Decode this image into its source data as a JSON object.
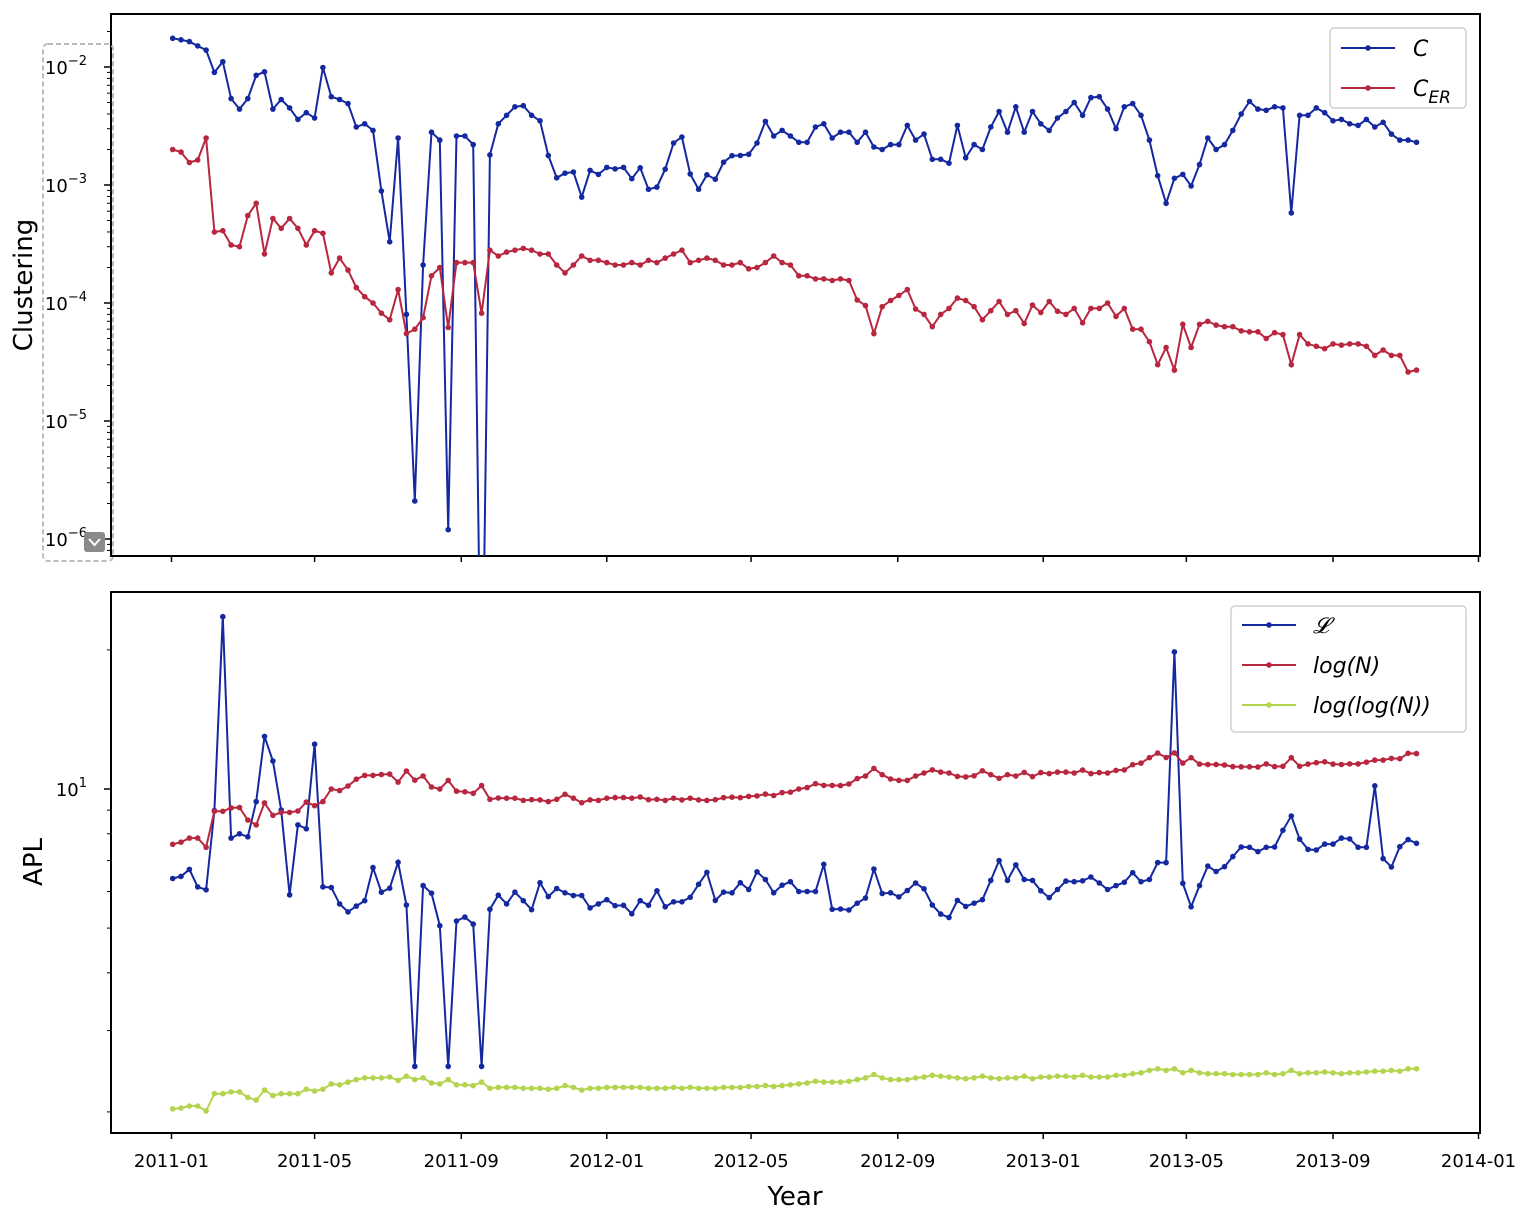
{
  "chart_data": [
    {
      "type": "line",
      "panel": "top",
      "ylabel": "Clustering",
      "xlabel": "",
      "yscale": "log",
      "ylim": [
        7.2e-07,
        0.028
      ],
      "yticks": [
        {
          "base": "10",
          "exp": "−6",
          "value": 1e-06
        },
        {
          "base": "10",
          "exp": "−5",
          "value": 1e-05
        },
        {
          "base": "10",
          "exp": "−4",
          "value": 0.0001
        },
        {
          "base": "10",
          "exp": "−3",
          "value": 0.001
        },
        {
          "base": "10",
          "exp": "−2",
          "value": 0.01
        }
      ],
      "legend_position": "upper-right",
      "x": {
        "start": "2011-01-02",
        "step_days": 7,
        "count": 150
      },
      "series": [
        {
          "name": "C",
          "sub": "",
          "color": "#1428a0",
          "values": [
            0.0175,
            0.017,
            0.0164,
            0.0151,
            0.0139,
            0.009,
            0.0111,
            0.0054,
            0.0044,
            0.0054,
            0.0085,
            0.0091,
            0.0044,
            0.0053,
            0.0045,
            0.0036,
            0.0041,
            0.0037,
            0.0099,
            0.0056,
            0.0053,
            0.0049,
            0.0031,
            0.0033,
            0.0029,
            0.00089,
            0.00033,
            0.0025,
            8e-05,
            2.1e-06,
            0.00021,
            0.0028,
            0.0024,
            1.2e-06,
            0.0026,
            0.0026,
            0.0022,
            0,
            0.0018,
            0.0033,
            0.0039,
            0.0046,
            0.0047,
            0.0039,
            0.0035,
            0.00178,
            0.00115,
            0.00126,
            0.00129,
            0.00079,
            0.00133,
            0.00123,
            0.00141,
            0.00137,
            0.00141,
            0.00113,
            0.0014,
            0.00092,
            0.00096,
            0.00136,
            0.00227,
            0.00255,
            0.00124,
            0.00092,
            0.00122,
            0.00112,
            0.00156,
            0.00177,
            0.00178,
            0.00182,
            0.00227,
            0.00346,
            0.0026,
            0.0029,
            0.0026,
            0.0023,
            0.0023,
            0.0031,
            0.0033,
            0.0025,
            0.0028,
            0.0028,
            0.0023,
            0.0028,
            0.0021,
            0.002,
            0.0022,
            0.0022,
            0.0032,
            0.0024,
            0.0027,
            0.00165,
            0.00165,
            0.00153,
            0.0032,
            0.0017,
            0.0022,
            0.002,
            0.0031,
            0.0042,
            0.0028,
            0.0046,
            0.0028,
            0.0042,
            0.0033,
            0.0029,
            0.0037,
            0.0042,
            0.005,
            0.0039,
            0.0055,
            0.0056,
            0.0044,
            0.003,
            0.0046,
            0.0049,
            0.0039,
            0.0024,
            0.0012,
            0.0007,
            0.00114,
            0.00123,
            0.00098,
            0.00149,
            0.0025,
            0.002,
            0.0022,
            0.0029,
            0.004,
            0.0051,
            0.0044,
            0.0043,
            0.0046,
            0.0045,
            0.00058,
            0.0039,
            0.0039,
            0.0045,
            0.0041,
            0.0035,
            0.0036,
            0.0033,
            0.0032,
            0.0036,
            0.0031,
            0.0034,
            0.0027,
            0.0024,
            0.0024,
            0.0023
          ]
        },
        {
          "name": "C",
          "sub": "ER",
          "color": "#b8263f",
          "values": [
            0.002,
            0.0019,
            0.00155,
            0.00163,
            0.0025,
            0.0004,
            0.00041,
            0.00031,
            0.0003,
            0.00055,
            0.0007,
            0.00026,
            0.00052,
            0.00043,
            0.00052,
            0.00043,
            0.00031,
            0.00041,
            0.00039,
            0.00018,
            0.00024,
            0.00019,
            0.000135,
            0.000113,
            0.0001,
            8.2e-05,
            7.2e-05,
            0.00013,
            5.5e-05,
            6e-05,
            7.5e-05,
            0.00017,
            0.0002,
            6.2e-05,
            0.00022,
            0.00022,
            0.00022,
            8.2e-05,
            0.00028,
            0.00025,
            0.00027,
            0.00028,
            0.00029,
            0.00028,
            0.00026,
            0.00026,
            0.00021,
            0.00018,
            0.00021,
            0.00025,
            0.00023,
            0.00023,
            0.00022,
            0.00021,
            0.00021,
            0.00022,
            0.00021,
            0.00023,
            0.00022,
            0.00024,
            0.00026,
            0.00028,
            0.00022,
            0.00023,
            0.00024,
            0.00023,
            0.00021,
            0.00021,
            0.00022,
            0.000195,
            0.0002,
            0.00022,
            0.00025,
            0.00022,
            0.00021,
            0.00017,
            0.00017,
            0.00016,
            0.00016,
            0.000155,
            0.00016,
            0.000155,
            0.000106,
            9.5e-05,
            5.5e-05,
            9.3e-05,
            0.000105,
            0.000116,
            0.00013,
            8.9e-05,
            8e-05,
            6.3e-05,
            8e-05,
            9e-05,
            0.00011,
            0.000105,
            9.3e-05,
            7.2e-05,
            8.6e-05,
            0.000103,
            8e-05,
            8.6e-05,
            6.7e-05,
            9.6e-05,
            8.3e-05,
            0.000103,
            8.5e-05,
            8e-05,
            9e-05,
            6.8e-05,
            9e-05,
            9e-05,
            0.0001,
            7.7e-05,
            9e-05,
            6e-05,
            6e-05,
            4.7e-05,
            3e-05,
            4.2e-05,
            2.7e-05,
            6.6e-05,
            4.2e-05,
            6.6e-05,
            7e-05,
            6.5e-05,
            6.3e-05,
            6.3e-05,
            5.8e-05,
            5.7e-05,
            5.7e-05,
            5e-05,
            5.6e-05,
            5.4e-05,
            3e-05,
            5.4e-05,
            4.5e-05,
            4.3e-05,
            4.1e-05,
            4.5e-05,
            4.4e-05,
            4.5e-05,
            4.5e-05,
            4.3e-05,
            3.6e-05,
            4e-05,
            3.6e-05,
            3.6e-05,
            2.6e-05,
            2.7e-05
          ]
        }
      ]
    },
    {
      "type": "line",
      "panel": "bottom",
      "ylabel": "APL",
      "xlabel": "Year",
      "yscale": "log",
      "ylim": [
        1.8,
        26.7
      ],
      "yticks": [
        {
          "base": "10",
          "exp": "1",
          "value": 10
        }
      ],
      "xticks": [
        "2011-01",
        "2011-05",
        "2011-09",
        "2012-01",
        "2012-05",
        "2012-09",
        "2013-01",
        "2013-05",
        "2013-09",
        "2014-01"
      ],
      "legend_position": "upper-right",
      "x": {
        "start": "2011-01-02",
        "step_days": 7,
        "count": 150
      },
      "series": [
        {
          "name": "𝓛",
          "color": "#1428a0",
          "values": [
            6.4,
            6.47,
            6.7,
            6.14,
            6.05,
            8.98,
            23.6,
            7.83,
            8.0,
            7.88,
            9.39,
            13.0,
            11.5,
            9.0,
            5.9,
            8.36,
            8.2,
            12.5,
            6.14,
            6.12,
            5.64,
            5.42,
            5.58,
            5.73,
            6.76,
            5.98,
            6.1,
            6.94,
            5.61,
            2.51,
            6.18,
            5.95,
            5.06,
            2.51,
            5.18,
            5.28,
            5.1,
            2.51,
            5.49,
            5.89,
            5.64,
            5.98,
            5.73,
            5.48,
            6.27,
            5.85,
            6.09,
            5.96,
            5.88,
            5.88,
            5.53,
            5.64,
            5.76,
            5.59,
            5.6,
            5.37,
            5.73,
            5.6,
            6.02,
            5.56,
            5.7,
            5.7,
            5.83,
            6.22,
            6.6,
            5.74,
            5.98,
            5.96,
            6.27,
            6.06,
            6.62,
            6.37,
            5.96,
            6.19,
            6.3,
            6.0,
            6.0,
            6.0,
            6.87,
            5.49,
            5.5,
            5.47,
            5.66,
            5.81,
            6.71,
            5.94,
            5.96,
            5.84,
            6.03,
            6.26,
            6.08,
            5.61,
            5.36,
            5.27,
            5.74,
            5.57,
            5.66,
            5.76,
            6.34,
            7.0,
            6.34,
            6.85,
            6.37,
            6.34,
            6.02,
            5.82,
            6.06,
            6.32,
            6.3,
            6.33,
            6.45,
            6.26,
            6.06,
            6.18,
            6.28,
            6.59,
            6.3,
            6.37,
            6.93,
            6.93,
            19.8,
            6.25,
            5.56,
            6.18,
            6.81,
            6.63,
            6.79,
            7.14,
            7.49,
            7.48,
            7.32,
            7.48,
            7.49,
            8.14,
            8.74,
            7.79,
            7.4,
            7.38,
            7.6,
            7.6,
            7.83,
            7.8,
            7.48,
            7.48,
            10.16,
            7.07,
            6.78,
            7.5,
            7.77,
            7.63
          ]
        },
        {
          "name": "log(N)",
          "color": "#b8263f",
          "values": [
            7.59,
            7.67,
            7.83,
            7.83,
            7.48,
            8.95,
            8.95,
            9.1,
            9.12,
            8.57,
            8.36,
            9.33,
            8.77,
            8.9,
            8.9,
            8.96,
            9.37,
            9.2,
            9.39,
            10.0,
            9.92,
            10.15,
            10.5,
            10.7,
            10.7,
            10.75,
            10.77,
            10.35,
            10.94,
            10.45,
            10.67,
            10.1,
            10.0,
            10.44,
            9.89,
            9.86,
            9.79,
            10.17,
            9.5,
            9.56,
            9.55,
            9.55,
            9.45,
            9.48,
            9.47,
            9.39,
            9.5,
            9.74,
            9.55,
            9.34,
            9.47,
            9.45,
            9.55,
            9.58,
            9.58,
            9.55,
            9.61,
            9.48,
            9.5,
            9.45,
            9.55,
            9.47,
            9.55,
            9.47,
            9.45,
            9.48,
            9.58,
            9.6,
            9.58,
            9.64,
            9.66,
            9.75,
            9.68,
            9.82,
            9.84,
            10.0,
            10.07,
            10.27,
            10.18,
            10.18,
            10.17,
            10.25,
            10.53,
            10.67,
            11.08,
            10.74,
            10.51,
            10.44,
            10.44,
            10.67,
            10.83,
            11.0,
            10.88,
            10.83,
            10.65,
            10.62,
            10.68,
            10.95,
            10.74,
            10.55,
            10.74,
            10.67,
            10.86,
            10.64,
            10.85,
            10.8,
            10.88,
            10.88,
            10.83,
            10.99,
            10.8,
            10.85,
            10.83,
            10.97,
            11.0,
            11.29,
            11.38,
            11.69,
            11.96,
            11.7,
            11.97,
            11.38,
            11.69,
            11.32,
            11.3,
            11.3,
            11.27,
            11.18,
            11.17,
            11.17,
            11.16,
            11.33,
            11.18,
            11.2,
            11.69,
            11.2,
            11.32,
            11.4,
            11.45,
            11.32,
            11.3,
            11.33,
            11.33,
            11.43,
            11.55,
            11.55,
            11.65,
            11.63,
            11.95,
            11.93
          ]
        },
        {
          "name": "log(log(N))",
          "color": "#b4d44e",
          "values": [
            2.03,
            2.04,
            2.06,
            2.06,
            2.01,
            2.19,
            2.19,
            2.21,
            2.21,
            2.15,
            2.12,
            2.23,
            2.17,
            2.19,
            2.19,
            2.19,
            2.24,
            2.22,
            2.24,
            2.3,
            2.29,
            2.32,
            2.35,
            2.37,
            2.37,
            2.37,
            2.38,
            2.34,
            2.39,
            2.35,
            2.37,
            2.31,
            2.3,
            2.35,
            2.29,
            2.29,
            2.28,
            2.32,
            2.25,
            2.26,
            2.26,
            2.26,
            2.25,
            2.25,
            2.25,
            2.24,
            2.25,
            2.28,
            2.26,
            2.23,
            2.25,
            2.25,
            2.26,
            2.26,
            2.26,
            2.26,
            2.26,
            2.25,
            2.25,
            2.25,
            2.26,
            2.25,
            2.26,
            2.25,
            2.25,
            2.25,
            2.26,
            2.26,
            2.26,
            2.27,
            2.27,
            2.28,
            2.27,
            2.28,
            2.29,
            2.3,
            2.31,
            2.33,
            2.32,
            2.32,
            2.32,
            2.33,
            2.35,
            2.37,
            2.41,
            2.37,
            2.35,
            2.35,
            2.35,
            2.37,
            2.38,
            2.4,
            2.39,
            2.38,
            2.37,
            2.36,
            2.37,
            2.39,
            2.37,
            2.36,
            2.37,
            2.37,
            2.39,
            2.36,
            2.38,
            2.38,
            2.39,
            2.39,
            2.38,
            2.4,
            2.38,
            2.38,
            2.38,
            2.4,
            2.4,
            2.42,
            2.43,
            2.46,
            2.48,
            2.46,
            2.48,
            2.43,
            2.46,
            2.43,
            2.42,
            2.42,
            2.42,
            2.41,
            2.41,
            2.41,
            2.41,
            2.43,
            2.41,
            2.42,
            2.46,
            2.42,
            2.43,
            2.43,
            2.44,
            2.43,
            2.42,
            2.43,
            2.43,
            2.44,
            2.45,
            2.45,
            2.46,
            2.45,
            2.48,
            2.48
          ]
        }
      ]
    }
  ]
}
